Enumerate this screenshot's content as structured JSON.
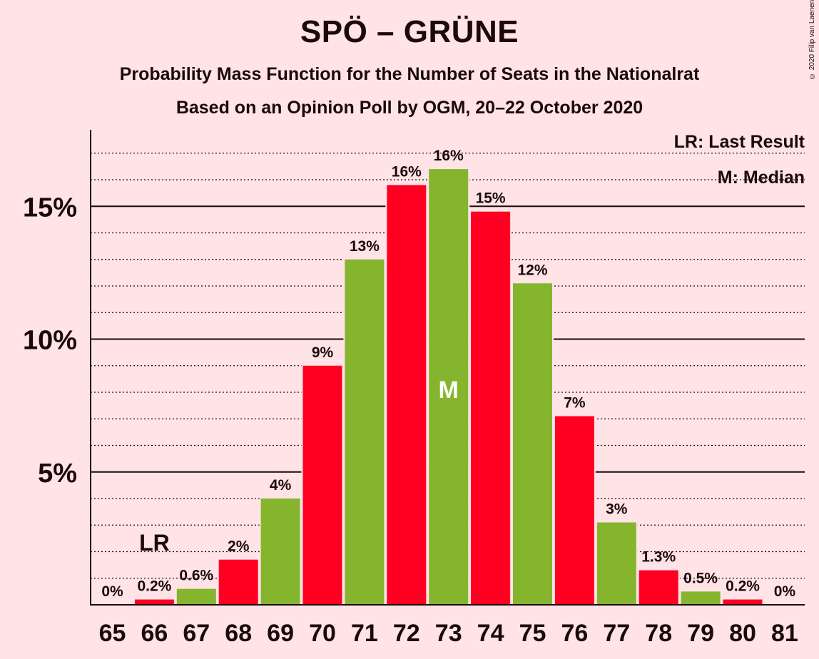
{
  "title": "SPÖ – GRÜNE",
  "subtitle1": "Probability Mass Function for the Number of Seats in the Nationalrat",
  "subtitle2": "Based on an Opinion Poll by OGM, 20–22 October 2020",
  "copyright": "© 2020 Filip van Laenen",
  "legend": {
    "last_result": "LR: Last Result",
    "median": "M: Median"
  },
  "colors": {
    "red": "#FF0022",
    "green": "#85B52D",
    "background": "#FFE3E6"
  },
  "chart_data": {
    "type": "bar",
    "categories": [
      "65",
      "66",
      "67",
      "68",
      "69",
      "70",
      "71",
      "72",
      "73",
      "74",
      "75",
      "76",
      "77",
      "78",
      "79",
      "80",
      "81"
    ],
    "values": [
      0,
      0.2,
      0.6,
      1.7,
      4.0,
      9.0,
      13.0,
      15.8,
      16.4,
      14.8,
      12.1,
      7.1,
      3.1,
      1.3,
      0.5,
      0.2,
      0
    ],
    "labels": [
      "0%",
      "0.2%",
      "0.6%",
      "2%",
      "4%",
      "9%",
      "13%",
      "16%",
      "16%",
      "15%",
      "12%",
      "7%",
      "3%",
      "1.3%",
      "0.5%",
      "0.2%",
      "0%"
    ],
    "bar_colors": [
      "red",
      "red",
      "green",
      "red",
      "green",
      "red",
      "green",
      "red",
      "green",
      "red",
      "green",
      "red",
      "green",
      "red",
      "green",
      "red",
      "green"
    ],
    "yticks": [
      {
        "value": 5,
        "label": "5%"
      },
      {
        "value": 10,
        "label": "10%"
      },
      {
        "value": 15,
        "label": "15%"
      }
    ],
    "ylim": [
      0,
      17.8
    ],
    "grid_minor_step": 1,
    "last_result": {
      "category": "66",
      "label": "LR"
    },
    "median": {
      "category": "73",
      "label": "M"
    }
  }
}
